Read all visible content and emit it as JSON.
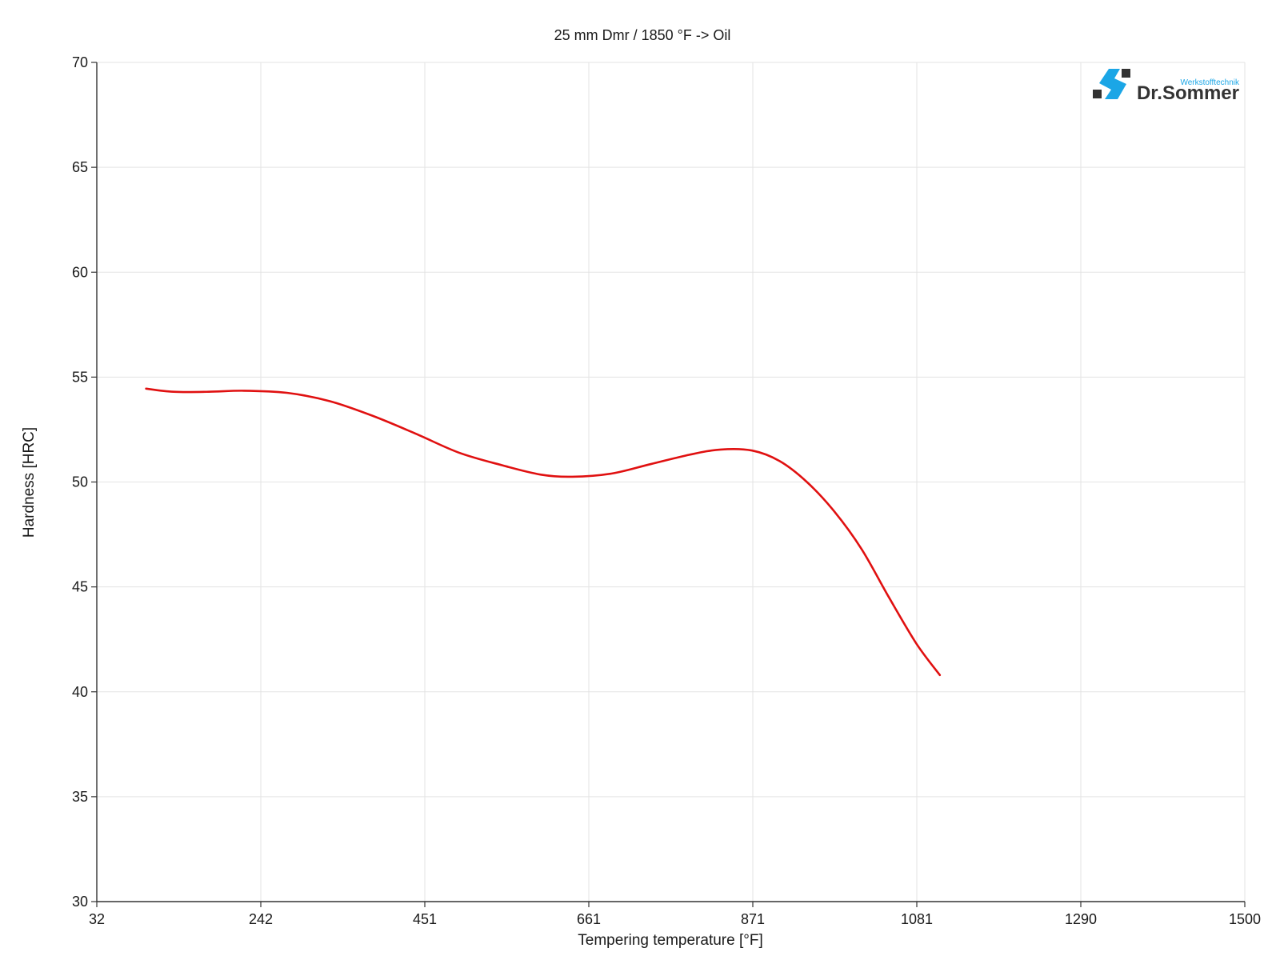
{
  "chart_data": {
    "type": "line",
    "title": "25 mm Dmr / 1850 °F -> Oil",
    "xlabel": "Tempering temperature [°F]",
    "ylabel": "Hardness [HRC]",
    "xlim": [
      32,
      1500
    ],
    "ylim": [
      30,
      70
    ],
    "x_ticks": [
      "32",
      "242",
      "451",
      "661",
      "871",
      "1081",
      "1290",
      "1500"
    ],
    "y_ticks": [
      "30",
      "35",
      "40",
      "45",
      "50",
      "55",
      "60",
      "65",
      "70"
    ],
    "grid": true,
    "legend": "none",
    "series": [
      {
        "color": "#e01010",
        "x": [
          95,
          130,
          175,
          220,
          275,
          330,
          385,
          440,
          495,
          550,
          600,
          640,
          690,
          740,
          790,
          830,
          870,
          905,
          940,
          975,
          1010,
          1045,
          1080,
          1110
        ],
        "y": [
          54.45,
          54.3,
          54.3,
          54.35,
          54.25,
          53.85,
          53.15,
          52.3,
          51.4,
          50.8,
          50.35,
          50.25,
          50.4,
          50.85,
          51.3,
          51.55,
          51.5,
          51.0,
          50.0,
          48.6,
          46.8,
          44.5,
          42.3,
          40.8
        ]
      }
    ]
  },
  "logo": {
    "brand": "Dr.Sommer",
    "tagline": "Werkstofftechnik",
    "colors": {
      "accent": "#1ba6e6",
      "dark": "#333333"
    }
  }
}
